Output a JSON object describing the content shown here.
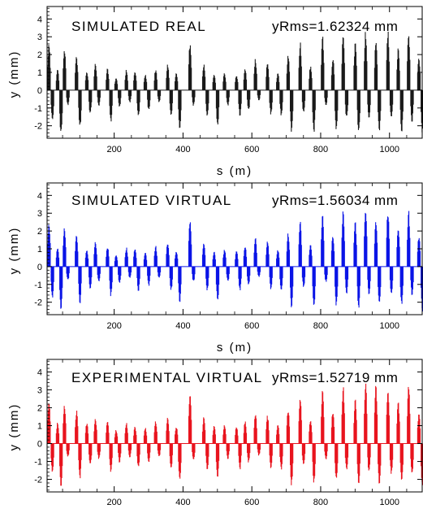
{
  "chart_data": [
    {
      "type": "bar",
      "title": "SIMULATED REAL",
      "annotation": "yRms=1.62324 mm",
      "xlabel": "s (m)",
      "ylabel": "y (mm)",
      "xlim": [
        5,
        1095
      ],
      "ylim": [
        -2.7,
        4.7
      ],
      "xticks": [
        200,
        400,
        600,
        800,
        1000
      ],
      "xtick_labels": [
        "200",
        "400",
        "600",
        "800",
        "1000"
      ],
      "yticks": [
        -2,
        -1,
        0,
        1,
        2,
        3,
        4
      ],
      "ytick_labels": [
        "-2",
        "-1",
        "0",
        "1",
        "2",
        "3",
        "4"
      ],
      "color": "#1a1a1a",
      "grid": false,
      "legend": "none",
      "envelope": {
        "description": "orbit offset y along s, one bar per monitor",
        "groups": [
          {
            "s": 15,
            "max": 2.7,
            "min": -1.8
          },
          {
            "s": 40,
            "max": 1.2,
            "min": -2.6
          },
          {
            "s": 60,
            "max": 2.4,
            "min": -0.9
          },
          {
            "s": 95,
            "max": 2.0,
            "min": -2.2
          },
          {
            "s": 125,
            "max": 1.1,
            "min": -1.4
          },
          {
            "s": 150,
            "max": 1.6,
            "min": -0.9
          },
          {
            "s": 185,
            "max": 1.3,
            "min": -1.8
          },
          {
            "s": 210,
            "max": 0.7,
            "min": -1.0
          },
          {
            "s": 240,
            "max": 1.2,
            "min": -0.7
          },
          {
            "s": 265,
            "max": 1.1,
            "min": -1.5
          },
          {
            "s": 295,
            "max": 0.9,
            "min": -1.2
          },
          {
            "s": 325,
            "max": 1.2,
            "min": -0.7
          },
          {
            "s": 360,
            "max": 1.5,
            "min": -1.5
          },
          {
            "s": 385,
            "max": 1.0,
            "min": -2.2
          },
          {
            "s": 425,
            "max": 2.8,
            "min": -0.9
          },
          {
            "s": 465,
            "max": 1.5,
            "min": -1.5
          },
          {
            "s": 495,
            "max": 0.9,
            "min": -2.1
          },
          {
            "s": 525,
            "max": 1.0,
            "min": -0.9
          },
          {
            "s": 560,
            "max": 0.9,
            "min": -1.5
          },
          {
            "s": 585,
            "max": 1.3,
            "min": -1.2
          },
          {
            "s": 615,
            "max": 1.8,
            "min": -0.6
          },
          {
            "s": 650,
            "max": 1.6,
            "min": -1.4
          },
          {
            "s": 680,
            "max": 1.0,
            "min": -1.5
          },
          {
            "s": 710,
            "max": 2.0,
            "min": -2.5
          },
          {
            "s": 745,
            "max": 2.8,
            "min": -1.3
          },
          {
            "s": 775,
            "max": 1.4,
            "min": -2.4
          },
          {
            "s": 810,
            "max": 3.2,
            "min": -0.9
          },
          {
            "s": 840,
            "max": 1.9,
            "min": -2.4
          },
          {
            "s": 870,
            "max": 3.3,
            "min": -1.7
          },
          {
            "s": 905,
            "max": 2.7,
            "min": -2.5
          },
          {
            "s": 935,
            "max": 3.4,
            "min": -1.7
          },
          {
            "s": 965,
            "max": 2.8,
            "min": -2.4
          },
          {
            "s": 1000,
            "max": 3.4,
            "min": -1.7
          },
          {
            "s": 1030,
            "max": 2.4,
            "min": -2.4
          },
          {
            "s": 1060,
            "max": 3.3,
            "min": -1.8
          },
          {
            "s": 1090,
            "max": 1.9,
            "min": -2.5
          }
        ]
      }
    },
    {
      "type": "bar",
      "title": "SIMULATED VIRTUAL",
      "annotation": "yRms=1.56034 mm",
      "xlabel": "s (m)",
      "ylabel": "y (mm)",
      "xlim": [
        5,
        1095
      ],
      "ylim": [
        -2.7,
        4.7
      ],
      "xticks": [
        200,
        400,
        600,
        800,
        1000
      ],
      "xtick_labels": [
        "200",
        "400",
        "600",
        "800",
        "1000"
      ],
      "yticks": [
        -2,
        -1,
        0,
        1,
        2,
        3,
        4
      ],
      "ytick_labels": [
        "-2",
        "-1",
        "0",
        "1",
        "2",
        "3",
        "4"
      ],
      "color": "#0a14e6",
      "grid": false,
      "legend": "none",
      "envelope": {
        "description": "orbit offset y along s, one bar per monitor",
        "groups": [
          {
            "s": 15,
            "max": 2.6,
            "min": -1.8
          },
          {
            "s": 40,
            "max": 1.1,
            "min": -2.6
          },
          {
            "s": 60,
            "max": 2.3,
            "min": -0.8
          },
          {
            "s": 95,
            "max": 1.8,
            "min": -2.1
          },
          {
            "s": 125,
            "max": 1.0,
            "min": -1.3
          },
          {
            "s": 150,
            "max": 1.5,
            "min": -0.9
          },
          {
            "s": 185,
            "max": 1.2,
            "min": -1.7
          },
          {
            "s": 210,
            "max": 0.7,
            "min": -1.0
          },
          {
            "s": 240,
            "max": 1.1,
            "min": -0.7
          },
          {
            "s": 265,
            "max": 1.1,
            "min": -1.4
          },
          {
            "s": 295,
            "max": 0.8,
            "min": -1.1
          },
          {
            "s": 325,
            "max": 1.2,
            "min": -0.7
          },
          {
            "s": 360,
            "max": 1.4,
            "min": -1.4
          },
          {
            "s": 385,
            "max": 0.9,
            "min": -2.1
          },
          {
            "s": 425,
            "max": 2.8,
            "min": -0.9
          },
          {
            "s": 465,
            "max": 1.4,
            "min": -1.4
          },
          {
            "s": 495,
            "max": 0.9,
            "min": -2.0
          },
          {
            "s": 525,
            "max": 1.0,
            "min": -0.9
          },
          {
            "s": 560,
            "max": 0.9,
            "min": -1.4
          },
          {
            "s": 585,
            "max": 1.2,
            "min": -1.1
          },
          {
            "s": 615,
            "max": 1.7,
            "min": -0.6
          },
          {
            "s": 650,
            "max": 1.5,
            "min": -1.3
          },
          {
            "s": 680,
            "max": 1.0,
            "min": -1.4
          },
          {
            "s": 710,
            "max": 1.9,
            "min": -2.4
          },
          {
            "s": 745,
            "max": 2.7,
            "min": -1.2
          },
          {
            "s": 775,
            "max": 1.3,
            "min": -2.3
          },
          {
            "s": 810,
            "max": 3.0,
            "min": -0.9
          },
          {
            "s": 840,
            "max": 1.8,
            "min": -2.3
          },
          {
            "s": 870,
            "max": 3.2,
            "min": -1.6
          },
          {
            "s": 905,
            "max": 2.6,
            "min": -2.4
          },
          {
            "s": 935,
            "max": 3.3,
            "min": -1.6
          },
          {
            "s": 965,
            "max": 2.7,
            "min": -2.3
          },
          {
            "s": 1000,
            "max": 3.3,
            "min": -1.6
          },
          {
            "s": 1030,
            "max": 2.3,
            "min": -2.3
          },
          {
            "s": 1060,
            "max": 3.2,
            "min": -1.7
          },
          {
            "s": 1090,
            "max": 1.8,
            "min": -2.6
          }
        ]
      }
    },
    {
      "type": "bar",
      "title": "EXPERIMENTAL VIRTUAL",
      "annotation": "yRms=1.52719 mm",
      "xlabel": "",
      "ylabel": "y (mm)",
      "xlim": [
        5,
        1095
      ],
      "ylim": [
        -2.7,
        4.7
      ],
      "xticks": [
        200,
        400,
        600,
        800,
        1000
      ],
      "xtick_labels": [
        "200",
        "400",
        "600",
        "800",
        "1000"
      ],
      "yticks": [
        -2,
        -1,
        0,
        1,
        2,
        3,
        4
      ],
      "ytick_labels": [
        "-2",
        "-1",
        "0",
        "1",
        "2",
        "3",
        "4"
      ],
      "color": "#e8141e",
      "grid": false,
      "legend": "none",
      "envelope": {
        "description": "orbit offset y along s, one bar per monitor",
        "groups": [
          {
            "s": 15,
            "max": 2.6,
            "min": -1.7
          },
          {
            "s": 40,
            "max": 1.2,
            "min": -2.5
          },
          {
            "s": 60,
            "max": 2.2,
            "min": -0.8
          },
          {
            "s": 95,
            "max": 1.9,
            "min": -2.0
          },
          {
            "s": 125,
            "max": 1.2,
            "min": -1.3
          },
          {
            "s": 150,
            "max": 1.5,
            "min": -0.9
          },
          {
            "s": 185,
            "max": 1.3,
            "min": -1.7
          },
          {
            "s": 210,
            "max": 0.8,
            "min": -1.1
          },
          {
            "s": 240,
            "max": 1.2,
            "min": -0.8
          },
          {
            "s": 265,
            "max": 1.0,
            "min": -1.4
          },
          {
            "s": 295,
            "max": 0.9,
            "min": -1.1
          },
          {
            "s": 325,
            "max": 1.3,
            "min": -0.8
          },
          {
            "s": 360,
            "max": 1.5,
            "min": -1.4
          },
          {
            "s": 385,
            "max": 1.0,
            "min": -2.1
          },
          {
            "s": 425,
            "max": 3.0,
            "min": -1.0
          },
          {
            "s": 465,
            "max": 1.5,
            "min": -1.5
          },
          {
            "s": 495,
            "max": 1.0,
            "min": -2.0
          },
          {
            "s": 525,
            "max": 1.1,
            "min": -0.9
          },
          {
            "s": 560,
            "max": 1.0,
            "min": -1.5
          },
          {
            "s": 585,
            "max": 1.3,
            "min": -1.1
          },
          {
            "s": 615,
            "max": 1.8,
            "min": -0.7
          },
          {
            "s": 650,
            "max": 1.6,
            "min": -1.4
          },
          {
            "s": 680,
            "max": 1.1,
            "min": -1.5
          },
          {
            "s": 710,
            "max": 2.0,
            "min": -2.4
          },
          {
            "s": 745,
            "max": 2.6,
            "min": -1.3
          },
          {
            "s": 775,
            "max": 1.4,
            "min": -2.3
          },
          {
            "s": 810,
            "max": 3.0,
            "min": -0.9
          },
          {
            "s": 840,
            "max": 1.9,
            "min": -2.2
          },
          {
            "s": 870,
            "max": 3.3,
            "min": -1.6
          },
          {
            "s": 905,
            "max": 2.6,
            "min": -2.4
          },
          {
            "s": 935,
            "max": 3.5,
            "min": -1.7
          },
          {
            "s": 965,
            "max": 3.4,
            "min": -2.4
          },
          {
            "s": 1000,
            "max": 3.3,
            "min": -1.8
          },
          {
            "s": 1030,
            "max": 2.4,
            "min": -2.3
          },
          {
            "s": 1060,
            "max": 3.4,
            "min": -1.8
          },
          {
            "s": 1090,
            "max": 1.8,
            "min": -2.5
          }
        ]
      }
    }
  ]
}
